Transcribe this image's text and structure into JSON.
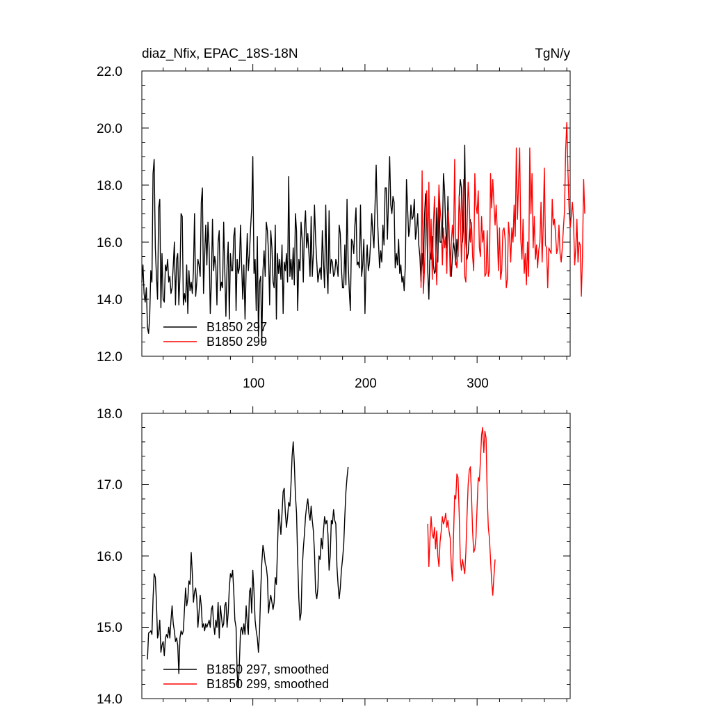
{
  "colors": {
    "series_297": "#000000",
    "series_299": "#ff0000"
  },
  "chart_data": [
    {
      "type": "line",
      "title_left": "diaz_Nfix, EPAC_18S-18N",
      "title_right": "TgN/y",
      "xlim": [
        1,
        383
      ],
      "ylim": [
        12.0,
        22.0
      ],
      "y_ticks": [
        "12.0",
        "14.0",
        "16.0",
        "18.0",
        "20.0",
        "22.0"
      ],
      "x_ticks": [
        "100",
        "200",
        "300"
      ],
      "legend_position": "bottom-left",
      "series": [
        {
          "name": "B1850 297",
          "color_key": "series_297",
          "x_start": 1,
          "values": [
            14.6,
            15.2,
            14.2,
            13.9,
            14.4,
            13.0,
            12.8,
            13.4,
            15.0,
            14.6,
            18.4,
            18.9,
            15.8,
            14.8,
            14.0,
            17.2,
            17.5,
            13.7,
            15.6,
            14.0,
            13.9,
            15.2,
            15.0,
            15.4,
            14.6,
            14.8,
            14.2,
            14.4,
            15.2,
            16.0,
            13.8,
            15.4,
            15.6,
            13.8,
            14.8,
            17.0,
            16.9,
            13.8,
            14.2,
            13.9,
            15.2,
            13.5,
            15.0,
            14.3,
            14.6,
            14.2,
            15.0,
            17.0,
            14.1,
            14.6,
            15.4,
            15.2,
            14.8,
            17.4,
            17.9,
            14.2,
            15.5,
            16.6,
            15.2,
            16.7,
            15.8,
            13.5,
            14.6,
            16.8,
            15.0,
            15.5,
            15.2,
            13.8,
            16.0,
            16.4,
            14.3,
            14.6,
            14.4,
            16.7,
            15.0,
            13.4,
            15.2,
            16.0,
            13.3,
            15.6,
            15.0,
            15.0,
            16.2,
            16.5,
            13.6,
            15.4,
            14.9,
            15.1,
            16.6,
            15.2,
            14.0,
            15.2,
            13.3,
            15.0,
            16.3,
            15.0,
            15.6,
            16.5,
            17.2,
            19.0,
            14.9,
            15.4,
            13.6,
            16.2,
            12.7,
            14.6,
            14.8,
            12.4,
            15.0,
            15.7,
            14.8,
            16.7,
            16.4,
            15.6,
            13.8,
            16.4,
            15.8,
            14.6,
            14.4,
            16.6,
            13.3,
            15.6,
            14.9,
            15.4,
            14.7,
            15.9,
            13.5,
            15.3,
            15.0,
            15.6,
            14.6,
            18.3,
            14.8,
            15.4,
            14.7,
            15.8,
            14.5,
            17.0,
            16.4,
            13.6,
            15.4,
            15.0,
            16.7,
            16.1,
            14.6,
            16.5,
            17.1,
            15.8,
            16.3,
            15.6,
            14.8,
            16.9,
            14.8,
            15.6,
            17.3,
            16.1,
            15.3,
            14.6,
            14.9,
            15.1,
            14.7,
            16.4,
            15.3,
            14.4,
            17.3,
            15.1,
            14.2,
            17.1,
            14.9,
            15.4,
            15.3,
            14.8,
            14.9,
            15.4,
            15.2,
            14.8,
            16.6,
            16.3,
            15.1,
            14.4,
            14.4,
            15.9,
            14.5,
            17.5,
            15.3,
            14.3,
            13.6,
            16.1,
            16.0,
            15.6,
            16.6,
            17.2,
            15.2,
            15.3,
            15.1,
            17.3,
            14.8,
            15.2,
            16.1,
            13.5,
            15.2,
            15.9,
            15.0,
            15.3,
            16.0,
            17.0,
            16.3,
            15.8,
            17.3,
            18.7,
            17.0,
            16.0,
            15.1,
            15.7,
            15.3,
            16.6,
            15.9,
            17.9,
            17.9,
            16.1,
            17.6,
            19.0,
            17.3,
            17.0,
            17.6,
            17.4,
            15.1,
            15.6,
            15.2,
            16.1,
            14.9,
            15.2,
            14.6,
            14.8,
            14.3,
            15.2,
            18.2,
            17.2,
            16.2,
            16.5,
            17.3,
            16.8,
            16.9,
            17.5,
            16.1,
            16.4,
            17.0,
            15.9,
            15.5,
            14.6,
            15.6,
            14.9,
            16.8,
            17.7,
            17.0,
            15.0,
            14.0,
            15.7,
            15.4,
            16.2,
            15.2,
            14.9,
            15.0,
            17.2,
            15.3,
            17.5,
            16.0,
            16.0,
            16.2,
            18.4,
            17.8,
            16.5,
            15.8,
            17.6,
            16.2,
            15.5,
            14.8,
            15.5,
            16.0,
            15.7,
            15.2,
            16.1,
            15.5,
            17.6,
            18.2,
            17.9,
            16.0,
            16.7,
            19.4,
            16.0,
            15.4,
            15.6,
            16.2,
            16.8
          ]
        },
        {
          "name": "B1850 299",
          "color_key": "series_299",
          "x_start": 250,
          "values": [
            14.4,
            18.5,
            14.2,
            15.0,
            16.1,
            17.8,
            15.6,
            18.1,
            15.4,
            16.8,
            14.7,
            16.6,
            17.6,
            15.8,
            14.5,
            16.5,
            18.0,
            17.2,
            16.7,
            15.2,
            16.5,
            15.8,
            16.2,
            14.9,
            17.1,
            16.6,
            14.8,
            16.0,
            16.6,
            16.0,
            18.9,
            15.4,
            15.1,
            15.7,
            17.6,
            17.0,
            15.3,
            16.4,
            18.2,
            14.8,
            14.6,
            16.4,
            18.1,
            17.4,
            16.0,
            16.7,
            15.5,
            15.0,
            18.4,
            17.3,
            17.0,
            17.8,
            15.8,
            15.5,
            16.9,
            16.0,
            16.4,
            14.8,
            14.9,
            16.4,
            14.8,
            15.0,
            18.4,
            17.2,
            18.2,
            17.4,
            16.6,
            17.3,
            16.4,
            15.0,
            16.5,
            14.7,
            15.0,
            16.4,
            16.5,
            16.1,
            14.4,
            14.7,
            16.7,
            16.2,
            15.3,
            16.5,
            16.0,
            17.3,
            16.2,
            19.3,
            16.8,
            18.1,
            19.3,
            16.1,
            15.4,
            16.8,
            14.9,
            15.6,
            14.5,
            16.0,
            14.8,
            19.3,
            17.0,
            18.4,
            15.8,
            16.9,
            15.4,
            15.9,
            15.1,
            15.7,
            16.0,
            17.4,
            15.3,
            16.6,
            18.6,
            15.9,
            15.8,
            14.4,
            15.8,
            15.7,
            15.6,
            17.5,
            16.6,
            16.8,
            16.3,
            15.6,
            15.8,
            16.6,
            15.6,
            15.3,
            15.8,
            16.5,
            17.1,
            19.2,
            20.2,
            18.5,
            17.2,
            16.5,
            16.9,
            17.4,
            16.8,
            15.2,
            15.8,
            16.8,
            15.3,
            16.0,
            15.9,
            14.1,
            15.5,
            18.2,
            17.0
          ]
        }
      ]
    },
    {
      "type": "line",
      "xlim": [
        1,
        383
      ],
      "ylim": [
        14.0,
        18.0
      ],
      "y_ticks": [
        "14.0",
        "15.0",
        "16.0",
        "17.0",
        "18.0"
      ],
      "legend_position": "bottom-left",
      "series": [
        {
          "name": "B1850 297, smoothed",
          "color_key": "series_297",
          "x_start": 6,
          "values": [
            14.55,
            14.92,
            14.93,
            14.95,
            14.9,
            15.4,
            15.75,
            15.7,
            15.35,
            14.85,
            14.92,
            15.1,
            14.65,
            14.75,
            14.8,
            14.6,
            14.85,
            14.9,
            14.85,
            15.0,
            14.85,
            15.1,
            15.3,
            15.05,
            14.95,
            14.8,
            14.85,
            14.75,
            14.35,
            14.85,
            14.95,
            14.9,
            14.95,
            15.25,
            15.55,
            15.3,
            15.4,
            15.65,
            15.6,
            16.05,
            15.75,
            15.35,
            15.5,
            15.55,
            15.4,
            15.0,
            15.2,
            15.45,
            15.3,
            15.0,
            15.05,
            14.95,
            15.05,
            15.0,
            15.05,
            15.1,
            15.0,
            15.25,
            15.3,
            15.05,
            14.9,
            15.1,
            15.0,
            15.35,
            14.85,
            15.3,
            15.15,
            15.0,
            15.05,
            15.3,
            15.35,
            15.0,
            15.2,
            15.55,
            15.75,
            15.7,
            15.8,
            15.5,
            15.1,
            15.0,
            14.35,
            14.15,
            14.5,
            14.95,
            15.0,
            14.9,
            15.05,
            14.9,
            15.3,
            15.05,
            14.9,
            15.5,
            15.55,
            15.2,
            15.8,
            15.5,
            15.1,
            14.95,
            14.85,
            14.65,
            14.95,
            15.5,
            15.9,
            16.15,
            16.05,
            15.9,
            15.85,
            15.7,
            15.2,
            15.35,
            15.45,
            15.35,
            15.25,
            15.35,
            15.7,
            15.6,
            16.1,
            16.65,
            16.5,
            16.3,
            16.6,
            16.9,
            16.95,
            16.6,
            16.4,
            16.55,
            16.75,
            16.7,
            17.0,
            17.4,
            17.6,
            17.3,
            16.85,
            16.6,
            15.95,
            15.4,
            15.1,
            15.2,
            15.8,
            16.1,
            16.3,
            16.55,
            16.7,
            16.8,
            16.6,
            16.5,
            16.7,
            16.5,
            16.35,
            16.05,
            15.5,
            15.4,
            15.55,
            16.0,
            15.95,
            16.25,
            16.1,
            16.35,
            16.55,
            16.45,
            16.5,
            16.3,
            15.8,
            16.0,
            16.5,
            16.45,
            16.65,
            16.5,
            16.45,
            15.85,
            15.6,
            15.4,
            15.55,
            15.8,
            15.95,
            16.15,
            16.55,
            16.9,
            17.1,
            17.25
          ]
        },
        {
          "name": "B1850 299, smoothed",
          "color_key": "series_299",
          "x_start": 256,
          "values": [
            16.45,
            15.85,
            16.25,
            16.55,
            16.3,
            16.25,
            16.4,
            16.1,
            16.35,
            16.0,
            15.85,
            16.2,
            16.35,
            16.55,
            16.45,
            16.5,
            16.6,
            16.4,
            16.5,
            16.35,
            16.25,
            15.85,
            15.65,
            16.3,
            16.85,
            16.8,
            17.15,
            17.1,
            16.6,
            15.95,
            15.8,
            15.95,
            15.85,
            15.75,
            16.05,
            16.55,
            17.0,
            17.2,
            17.25,
            16.85,
            16.35,
            16.05,
            16.1,
            16.25,
            16.7,
            17.1,
            17.05,
            17.35,
            17.7,
            17.8,
            17.45,
            17.75,
            17.65,
            16.85,
            16.4,
            16.25,
            15.95,
            15.65,
            15.45,
            15.7,
            15.95
          ]
        }
      ]
    }
  ]
}
